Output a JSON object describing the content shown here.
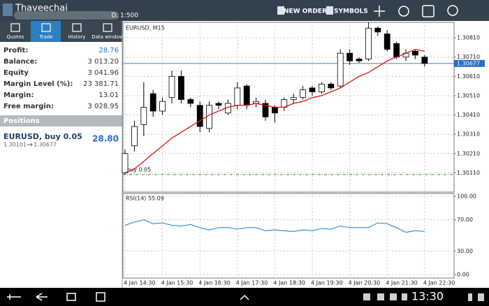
{
  "header": {
    "account": "Thaveechai",
    "leverage": "D, 1:500",
    "buttons": [
      "NEW ORDER",
      "SYMBOLS"
    ]
  },
  "tabs": [
    "Quotes",
    "Trade",
    "History",
    "Data window"
  ],
  "account": [
    {
      "label": "Profit:",
      "value": "28.76"
    },
    {
      "label": "Balance:",
      "value": "3 013.20"
    },
    {
      "label": "Equity",
      "value": "3 041.96"
    },
    {
      "label": "Margin Level (%):",
      "value": "23 381.71"
    },
    {
      "label": "Margin:",
      "value": "13.01"
    },
    {
      "label": "Free margin:",
      "value": "3 028.95"
    }
  ],
  "positions": {
    "title": "Positions",
    "items": [
      {
        "symbol": "EURUSD, buy 0.05",
        "open": "1.30101",
        "current": "1.30677",
        "profit": "28.80"
      }
    ]
  },
  "status_bar": {
    "time": "13:30"
  },
  "chart_data": [
    {
      "type": "candlestick",
      "title": "EURUSD, M15",
      "categories": [
        "4 Jan 14:30",
        null,
        null,
        null,
        "4 Jan 15:30",
        null,
        null,
        null,
        "4 Jan 16:30",
        null,
        null,
        null,
        "4 Jan 17:30",
        null,
        null,
        null,
        "4 Jan 18:30",
        null,
        null,
        null,
        "4 Jan 19:30",
        null,
        null,
        null,
        "4 Jan 20:30",
        null,
        null,
        null,
        "4 Jan 21:30",
        null,
        null,
        null,
        "4 Jan 22:30"
      ],
      "open": [
        1.3011,
        1.3025,
        1.3036,
        1.3052,
        1.3043,
        1.305,
        1.3061,
        1.3049,
        1.3046,
        1.3034,
        1.3047,
        1.3042,
        1.3046,
        1.3056,
        1.3047,
        1.3047,
        1.3045,
        1.3045,
        1.3049,
        1.305,
        1.3055,
        1.3053,
        1.3057,
        1.3056,
        1.3073,
        1.307,
        1.307,
        1.3086,
        1.3083,
        1.3078,
        1.3071,
        1.3074,
        1.3071
      ],
      "high": [
        1.3023,
        1.3038,
        1.3058,
        1.3054,
        1.305,
        1.3064,
        1.3064,
        1.305,
        1.3048,
        1.3048,
        1.3048,
        1.3049,
        1.3058,
        1.3057,
        1.305,
        1.3049,
        1.3046,
        1.305,
        1.3052,
        1.3056,
        1.3056,
        1.3058,
        1.3058,
        1.3075,
        1.3075,
        1.3071,
        1.3089,
        1.3087,
        1.3085,
        1.3079,
        1.3075,
        1.3075,
        1.3072
      ],
      "low": [
        1.301,
        1.3022,
        1.303,
        1.304,
        1.3041,
        1.3047,
        1.3047,
        1.3045,
        1.3032,
        1.3032,
        1.3044,
        1.3041,
        1.3044,
        1.3044,
        1.3045,
        1.3038,
        1.3037,
        1.3043,
        1.3047,
        1.3049,
        1.3051,
        1.3052,
        1.3054,
        1.3055,
        1.3067,
        1.3068,
        1.3069,
        1.3082,
        1.3074,
        1.307,
        1.3069,
        1.307,
        1.3066
      ],
      "close": [
        1.3021,
        1.3035,
        1.3045,
        1.3043,
        1.3048,
        1.3061,
        1.3049,
        1.3047,
        1.3035,
        1.3046,
        1.3046,
        1.3047,
        1.3055,
        1.3046,
        1.3048,
        1.304,
        1.3042,
        1.3049,
        1.305,
        1.3054,
        1.3053,
        1.3057,
        1.3055,
        1.3073,
        1.3069,
        1.3069,
        1.3086,
        1.3084,
        1.3075,
        1.3071,
        1.3073,
        1.3072,
        1.30677
      ],
      "up_color": "#ffffff",
      "down_color": "#000000",
      "series": [
        {
          "color": "#e01010",
          "values": [
            1.3011,
            1.3013,
            1.3017,
            1.3021,
            1.3025,
            1.3029,
            1.3032,
            1.3035,
            1.3038,
            1.3041,
            1.3043,
            1.3045,
            1.3046,
            1.3046,
            1.3047,
            1.3046,
            1.3045,
            1.3045,
            1.3047,
            1.3048,
            1.305,
            1.3051,
            1.3053,
            1.3055,
            1.3058,
            1.3061,
            1.3063,
            1.3066,
            1.3069,
            1.3071,
            1.3073,
            1.3075,
            1.3074
          ]
        }
      ],
      "ylim": [
        1.3001,
        1.3089
      ],
      "yticks": [
        {
          "value": 1.3011,
          "label": "1.30110"
        },
        {
          "value": 1.3021,
          "label": "1.30210"
        },
        {
          "value": 1.3031,
          "label": "1.30310"
        },
        {
          "value": 1.3041,
          "label": "1.30410"
        },
        {
          "value": 1.3051,
          "label": "1.30510"
        },
        {
          "value": 1.3061,
          "label": "1.30610"
        },
        {
          "value": 1.3071,
          "label": "1.30710"
        },
        {
          "value": 1.3081,
          "label": "1.30810"
        }
      ],
      "current_price": {
        "value": 1.30677,
        "label": "1.30677",
        "color": "#2a6fc9"
      },
      "order_line": {
        "value": 1.30101,
        "label": "buy 0.05",
        "color": "#2e8b2e"
      },
      "grid": true
    },
    {
      "type": "line",
      "title": "RSI(14) 55.09",
      "color": "#2f8fe0",
      "values": [
        63,
        67,
        70,
        65,
        66,
        63,
        62,
        64,
        60,
        57,
        60,
        60,
        58,
        60,
        60,
        56,
        57,
        56,
        55,
        57,
        56,
        59,
        58,
        62,
        60,
        60,
        60,
        66,
        65,
        60,
        54,
        56,
        55.09
      ],
      "ylim": [
        0,
        100
      ],
      "yticks": [
        {
          "value": 0,
          "label": "0.00"
        },
        {
          "value": 30,
          "label": "30.00"
        },
        {
          "value": 70,
          "label": "70.00"
        },
        {
          "value": 100,
          "label": "100.00"
        }
      ],
      "grid": true
    }
  ]
}
